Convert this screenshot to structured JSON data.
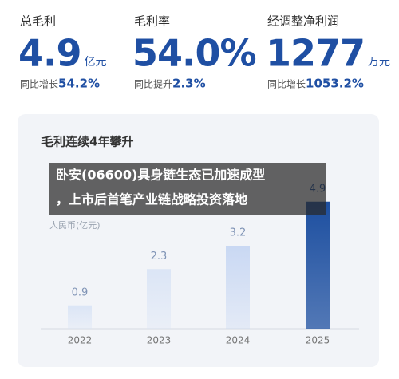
{
  "kpis": [
    {
      "label": "总毛利",
      "value": "4.9",
      "unit": "亿元",
      "sub_label": "同比增长",
      "sub_value": "54.2%"
    },
    {
      "label": "毛利率",
      "value": "54.0%",
      "unit": null,
      "sub_label": "同比提升",
      "sub_value": "2.3%"
    },
    {
      "label": "经调整净利润",
      "value": "1277",
      "unit": "万元",
      "sub_label": "同比增长",
      "sub_value": "1053.2%"
    }
  ],
  "chart_data": {
    "type": "bar",
    "title": "毛利连续4年攀升",
    "unit_label": "人民币(亿元)",
    "categories": [
      "2022",
      "2023",
      "2024",
      "2025"
    ],
    "values": [
      0.9,
      2.3,
      3.2,
      4.9
    ],
    "colors": [
      "#dbe5f6",
      "#dbe5f6",
      "#c9d8f3",
      "#1d4fa0"
    ]
  },
  "caption": [
    "卧安(06600)具身链生态已加速成型",
    "，上市后首笔产业链战略投资落地"
  ]
}
